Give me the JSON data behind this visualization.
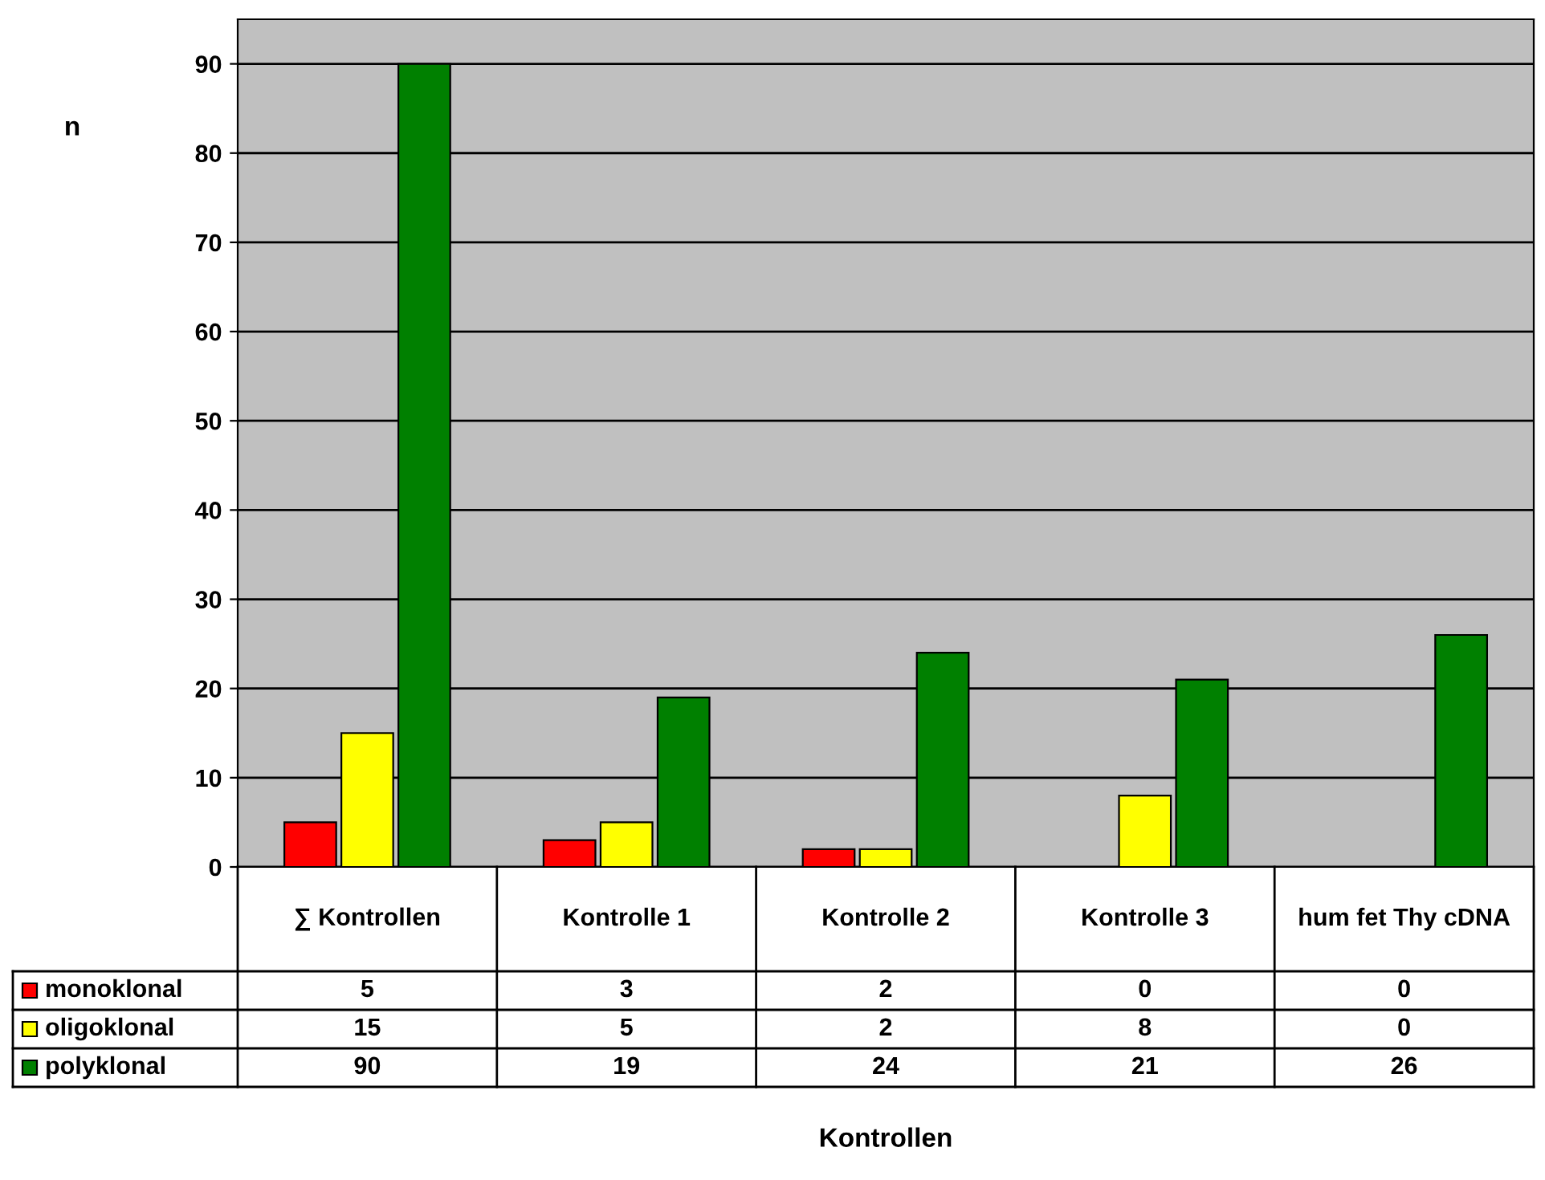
{
  "chart_data": {
    "type": "bar",
    "annotations": [
      "Kontrollen"
    ],
    "ylabel": "n",
    "categories": [
      "∑ Kontrollen",
      "Kontrolle 1",
      "Kontrolle 2",
      "Kontrolle 3",
      "hum fet Thy cDNA"
    ],
    "series": [
      {
        "name": "monoklonal",
        "color": "#ff0000",
        "values": [
          5,
          3,
          2,
          0,
          0
        ]
      },
      {
        "name": "oligoklonal",
        "color": "#ffff00",
        "values": [
          15,
          5,
          2,
          8,
          0
        ]
      },
      {
        "name": "polyklonal",
        "color": "#008000",
        "values": [
          90,
          19,
          24,
          21,
          26
        ]
      }
    ],
    "ylim": [
      0,
      95
    ],
    "yticks": [
      0,
      10,
      20,
      30,
      40,
      50,
      60,
      70,
      80,
      90
    ],
    "grid": "y",
    "data_labels": true,
    "legend": "bottom left",
    "tick_labels": "y"
  }
}
